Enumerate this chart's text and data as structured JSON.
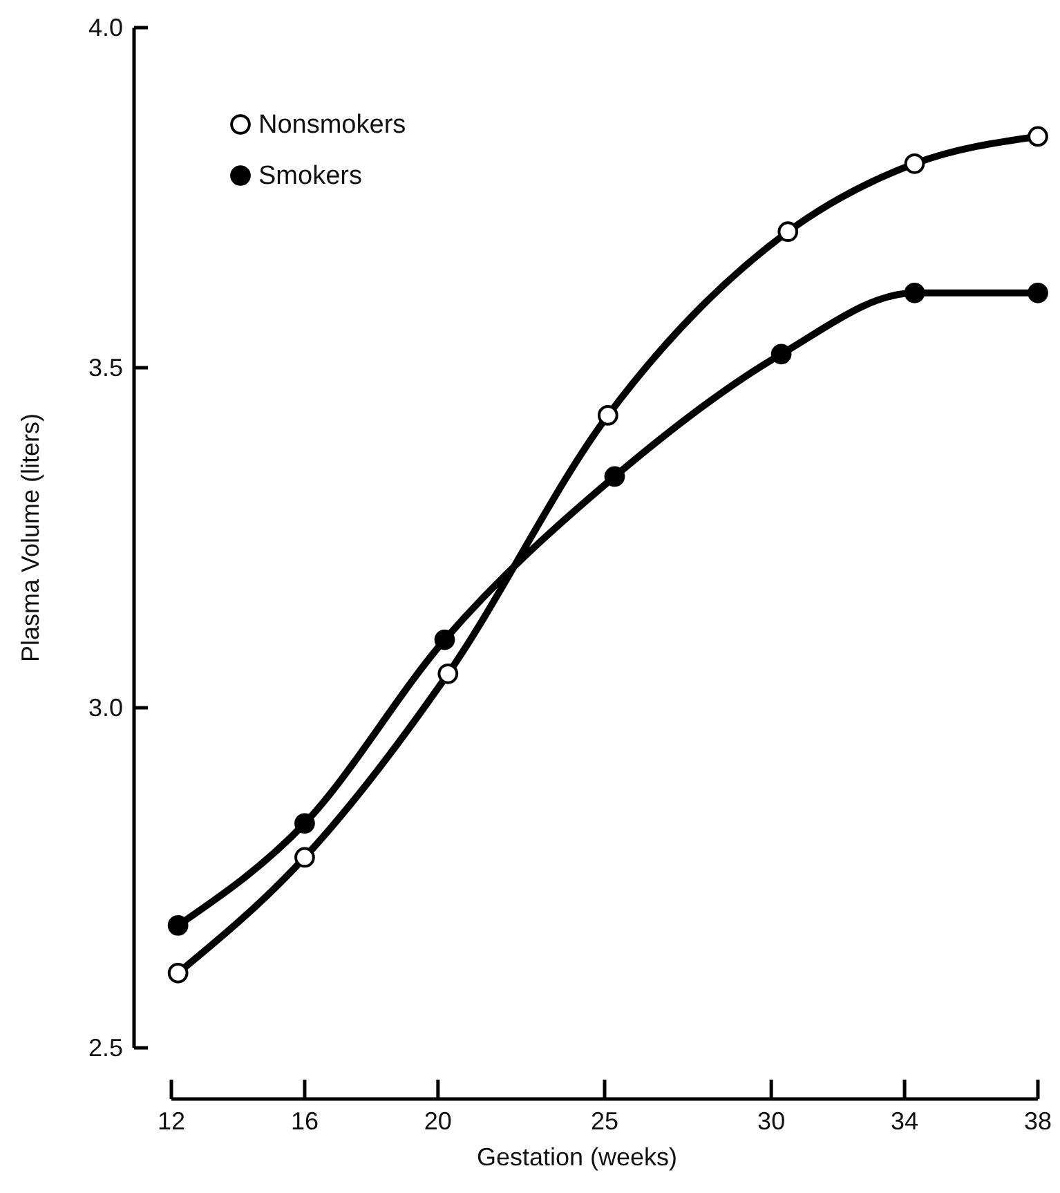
{
  "chart_data": {
    "type": "line",
    "xlabel": "Gestation (weeks)",
    "ylabel": "Plasma Volume (liters)",
    "xlim": [
      12,
      38
    ],
    "xticks": [
      12,
      16,
      20,
      25,
      30,
      34,
      38
    ],
    "ylim": [
      2.5,
      4.0
    ],
    "yticks": [
      {
        "value": 2.5,
        "label": "2.5"
      },
      {
        "value": 3.0,
        "label": "3.0"
      },
      {
        "value": 3.5,
        "label": "3.5"
      },
      {
        "value": 4.0,
        "label": "4.0"
      }
    ],
    "marker": "circle",
    "line_style": "solid",
    "grid": false,
    "legend": "top left",
    "series": [
      {
        "name": "Nonsmokers",
        "color": "#000000",
        "x": [
          12.2,
          16,
          20.3,
          25.1,
          30.5,
          34.3,
          38
        ],
        "values": [
          2.61,
          2.78,
          3.05,
          3.43,
          3.7,
          3.8,
          3.84
        ]
      },
      {
        "name": "Smokers",
        "color": "#000000",
        "x": [
          12.2,
          16,
          20.2,
          25.3,
          30.3,
          34.3,
          38
        ],
        "values": [
          2.68,
          2.83,
          3.1,
          3.34,
          3.52,
          3.61,
          3.61
        ]
      }
    ]
  }
}
